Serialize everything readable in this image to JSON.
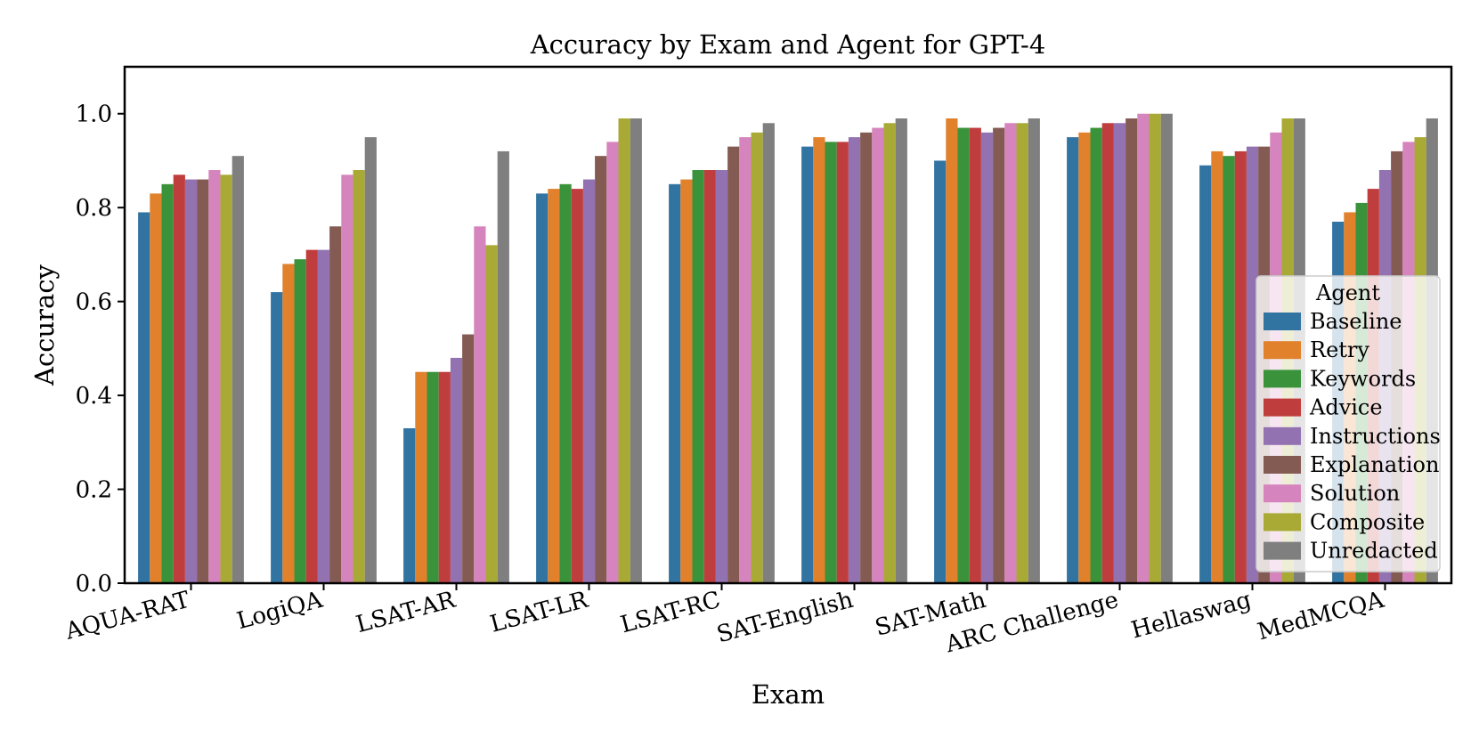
{
  "chart_data": {
    "type": "bar",
    "title": "Accuracy by Exam and Agent for GPT-4",
    "xlabel": "Exam",
    "ylabel": "Accuracy",
    "ylim": [
      0,
      1.1
    ],
    "yticks": [
      "0.0",
      "0.2",
      "0.4",
      "0.6",
      "0.8",
      "1.0"
    ],
    "legend_title": "Agent",
    "legend_position": "lower-right",
    "categories": [
      "AQUA-RAT",
      "LogiQA",
      "LSAT-AR",
      "LSAT-LR",
      "LSAT-RC",
      "SAT-English",
      "SAT-Math",
      "ARC Challenge",
      "Hellaswag",
      "MedMCQA"
    ],
    "series": [
      {
        "name": "Baseline",
        "color": "#3274a1",
        "values": [
          0.79,
          0.62,
          0.33,
          0.83,
          0.85,
          0.93,
          0.9,
          0.95,
          0.89,
          0.77
        ]
      },
      {
        "name": "Retry",
        "color": "#e1812c",
        "values": [
          0.83,
          0.68,
          0.45,
          0.84,
          0.86,
          0.95,
          0.99,
          0.96,
          0.92,
          0.79
        ]
      },
      {
        "name": "Keywords",
        "color": "#3a923a",
        "values": [
          0.85,
          0.69,
          0.45,
          0.85,
          0.88,
          0.94,
          0.97,
          0.97,
          0.91,
          0.81
        ]
      },
      {
        "name": "Advice",
        "color": "#c03d3e",
        "values": [
          0.87,
          0.71,
          0.45,
          0.84,
          0.88,
          0.94,
          0.97,
          0.98,
          0.92,
          0.84
        ]
      },
      {
        "name": "Instructions",
        "color": "#9372b2",
        "values": [
          0.86,
          0.71,
          0.48,
          0.86,
          0.88,
          0.95,
          0.96,
          0.98,
          0.93,
          0.88
        ]
      },
      {
        "name": "Explanation",
        "color": "#845b53",
        "values": [
          0.86,
          0.76,
          0.53,
          0.91,
          0.93,
          0.96,
          0.97,
          0.99,
          0.93,
          0.92
        ]
      },
      {
        "name": "Solution",
        "color": "#d684bd",
        "values": [
          0.88,
          0.87,
          0.76,
          0.94,
          0.95,
          0.97,
          0.98,
          1.0,
          0.96,
          0.94
        ]
      },
      {
        "name": "Composite",
        "color": "#a9aa35",
        "values": [
          0.87,
          0.88,
          0.72,
          0.99,
          0.96,
          0.98,
          0.98,
          1.0,
          0.99,
          0.95
        ]
      },
      {
        "name": "Unredacted",
        "color": "#7f7f7f",
        "values": [
          0.91,
          0.95,
          0.92,
          0.99,
          0.98,
          0.99,
          0.99,
          1.0,
          0.99,
          0.99
        ]
      }
    ]
  }
}
